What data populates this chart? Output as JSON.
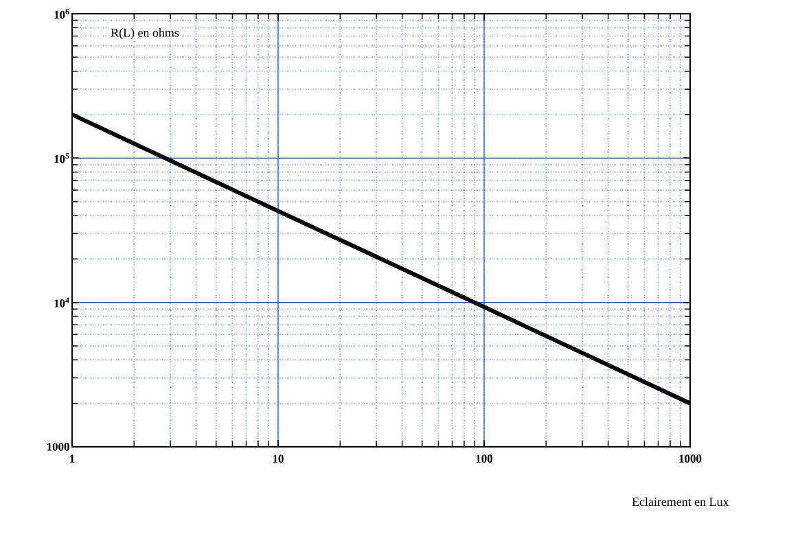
{
  "chart_data": {
    "type": "line",
    "xlabel": "Eclairement en Lux",
    "ylabel": "R(L) en ohms",
    "log": "xy",
    "grid": true,
    "x": [
      1,
      10,
      100,
      1000
    ],
    "series": [
      {
        "color": "#000000",
        "values": [
          200000,
          43000,
          9300,
          2000
        ]
      }
    ],
    "xlim": [
      1,
      1000
    ],
    "ylim": [
      1000,
      1000000
    ],
    "xticks": [
      1,
      10,
      100,
      1000
    ],
    "yticks": [
      1000,
      {
        "value": 10000,
        "label": "10$^{4}$"
      },
      {
        "value": 100000,
        "label": "10$^{5}$"
      },
      {
        "value": 1000000,
        "label": "10$^{6}$"
      }
    ]
  }
}
